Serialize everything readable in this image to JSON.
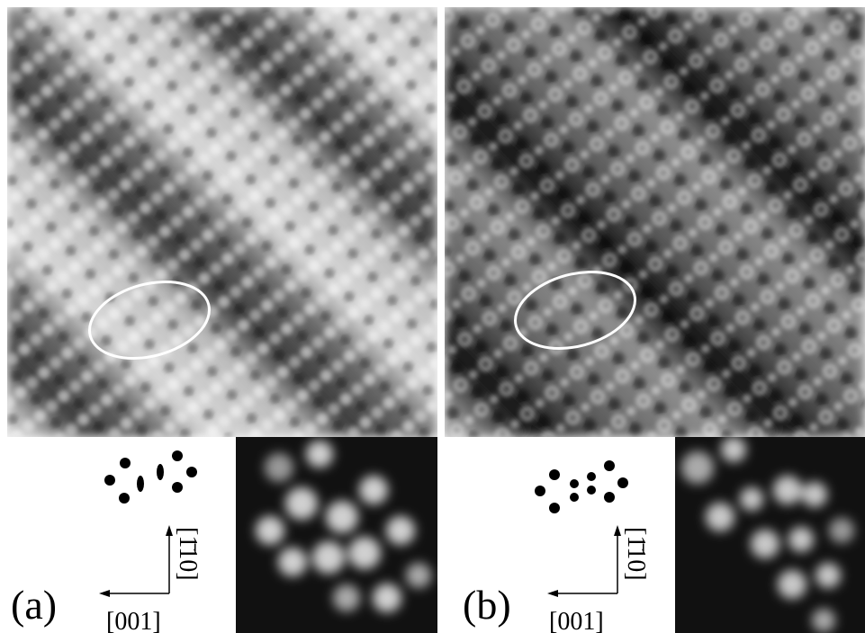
{
  "panels": [
    {
      "label": "(a)",
      "axis_horizontal": "[001]",
      "axis_vertical": "[1̄10]"
    },
    {
      "label": "(b)",
      "axis_horizontal": "[001]",
      "axis_vertical": "[1̄10]"
    }
  ]
}
